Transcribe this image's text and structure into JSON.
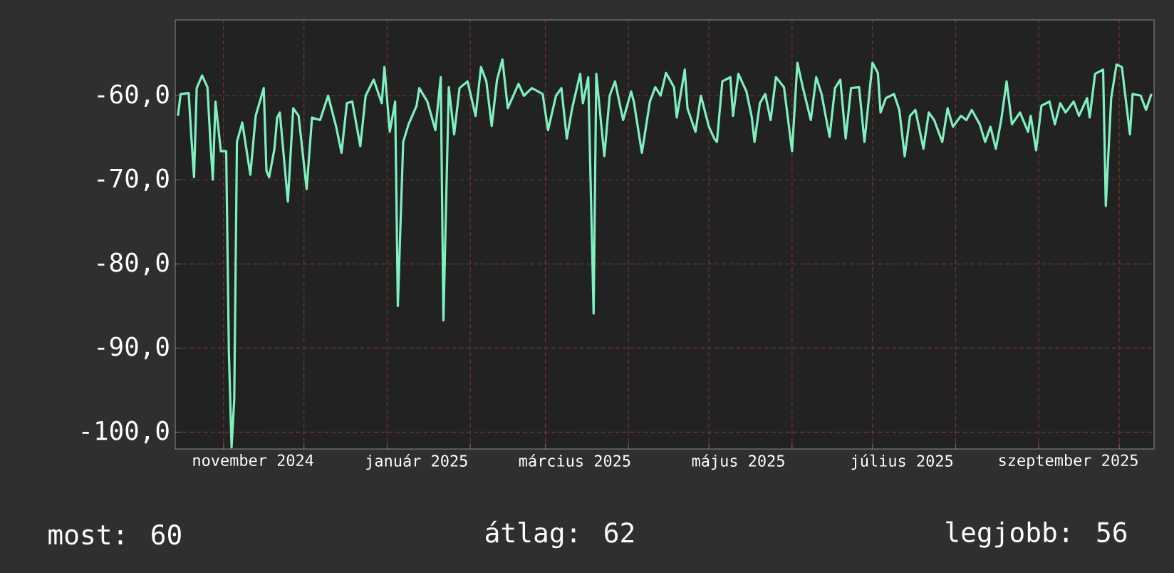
{
  "chart_data": {
    "type": "line",
    "color": "#7ff0c0",
    "grid": true,
    "xlim": [
      "2024-10-14",
      "2025-10-14"
    ],
    "ylim": [
      -102,
      -51
    ],
    "yticks": [
      {
        "value": -100,
        "label": "-100,0"
      },
      {
        "value": -90,
        "label": "-90,0"
      },
      {
        "value": -80,
        "label": "-80,0"
      },
      {
        "value": -70,
        "label": "-70,0"
      },
      {
        "value": -60,
        "label": "-60,0"
      }
    ],
    "xticks": [
      {
        "value": "2024-11-01",
        "label": null
      },
      {
        "value": "2024-12-01",
        "label": null
      },
      {
        "value": "2025-01-01",
        "label": null
      },
      {
        "value": "2025-02-01",
        "label": null
      },
      {
        "value": "2025-03-01",
        "label": null
      },
      {
        "value": "2025-04-01",
        "label": null
      },
      {
        "value": "2025-05-01",
        "label": null
      },
      {
        "value": "2025-06-01",
        "label": null
      },
      {
        "value": "2025-07-01",
        "label": null
      },
      {
        "value": "2025-08-01",
        "label": null
      },
      {
        "value": "2025-09-01",
        "label": null
      },
      {
        "value": "2025-10-01",
        "label": null
      },
      {
        "value": "2024-11-12",
        "label": "november 2024"
      },
      {
        "value": "2025-01-12",
        "label": "január 2025"
      },
      {
        "value": "2025-03-12",
        "label": "március 2025"
      },
      {
        "value": "2025-05-12",
        "label": "május 2025"
      },
      {
        "value": "2025-07-12",
        "label": "július 2025"
      },
      {
        "value": "2025-09-12",
        "label": "szeptember 2025"
      }
    ],
    "annotations": [
      "most: 60",
      "átlag: 62",
      "legjobb: 56"
    ],
    "x": [
      "2024-10-15",
      "2024-10-16",
      "2024-10-19",
      "2024-10-20",
      "2024-10-21",
      "2024-10-22",
      "2024-10-24",
      "2024-10-26",
      "2024-10-27",
      "2024-10-28",
      "2024-10-29",
      "2024-10-31",
      "2024-11-02",
      "2024-11-03",
      "2024-11-04",
      "2024-11-05",
      "2024-11-06",
      "2024-11-08",
      "2024-11-11",
      "2024-11-13",
      "2024-11-16",
      "2024-11-17",
      "2024-11-18",
      "2024-11-20",
      "2024-11-21",
      "2024-11-22",
      "2024-11-25",
      "2024-11-27",
      "2024-11-29",
      "2024-12-02",
      "2024-12-04",
      "2024-12-07",
      "2024-12-10",
      "2024-12-13",
      "2024-12-15",
      "2024-12-17",
      "2024-12-19",
      "2024-12-22",
      "2024-12-24",
      "2024-12-27",
      "2024-12-30",
      "2024-12-31",
      "2025-01-02",
      "2025-01-04",
      "2025-01-05",
      "2025-01-07",
      "2025-01-09",
      "2025-01-12",
      "2025-01-13",
      "2025-01-16",
      "2025-01-19",
      "2025-01-21",
      "2025-01-22",
      "2025-01-24",
      "2025-01-26",
      "2025-01-28",
      "2025-01-31",
      "2025-02-03",
      "2025-02-05",
      "2025-02-07",
      "2025-02-09",
      "2025-02-11",
      "2025-02-13",
      "2025-02-15",
      "2025-02-19",
      "2025-02-21",
      "2025-02-24",
      "2025-02-28",
      "2025-03-02",
      "2025-03-05",
      "2025-03-07",
      "2025-03-09",
      "2025-03-11",
      "2025-03-14",
      "2025-03-15",
      "2025-03-17",
      "2025-03-19",
      "2025-03-20",
      "2025-03-23",
      "2025-03-25",
      "2025-03-27",
      "2025-03-30",
      "2025-04-02",
      "2025-04-03",
      "2025-04-06",
      "2025-04-09",
      "2025-04-11",
      "2025-04-13",
      "2025-04-15",
      "2025-04-18",
      "2025-04-19",
      "2025-04-22",
      "2025-04-23",
      "2025-04-26",
      "2025-04-28",
      "2025-05-01",
      "2025-05-03",
      "2025-05-04",
      "2025-05-06",
      "2025-05-09",
      "2025-05-10",
      "2025-05-12",
      "2025-05-15",
      "2025-05-17",
      "2025-05-18",
      "2025-05-20",
      "2025-05-22",
      "2025-05-24",
      "2025-05-26",
      "2025-05-29",
      "2025-06-01",
      "2025-06-03",
      "2025-06-05",
      "2025-06-08",
      "2025-06-10",
      "2025-06-12",
      "2025-06-15",
      "2025-06-17",
      "2025-06-19",
      "2025-06-21",
      "2025-06-23",
      "2025-06-26",
      "2025-06-28",
      "2025-07-01",
      "2025-07-03",
      "2025-07-04",
      "2025-07-06",
      "2025-07-09",
      "2025-07-11",
      "2025-07-13",
      "2025-07-15",
      "2025-07-17",
      "2025-07-20",
      "2025-07-22",
      "2025-07-24",
      "2025-07-27",
      "2025-07-29",
      "2025-07-31",
      "2025-08-03",
      "2025-08-05",
      "2025-08-07",
      "2025-08-10",
      "2025-08-12",
      "2025-08-14",
      "2025-08-16",
      "2025-08-18",
      "2025-08-20",
      "2025-08-22",
      "2025-08-25",
      "2025-08-28",
      "2025-08-29",
      "2025-08-31",
      "2025-09-02",
      "2025-09-05",
      "2025-09-07",
      "2025-09-09",
      "2025-09-11",
      "2025-09-14",
      "2025-09-16",
      "2025-09-19",
      "2025-09-20",
      "2025-09-22",
      "2025-09-25",
      "2025-09-26",
      "2025-09-28",
      "2025-09-30",
      "2025-10-02",
      "2025-10-05",
      "2025-10-06",
      "2025-10-09",
      "2025-10-11",
      "2025-10-13"
    ],
    "values": [
      -62.4,
      -59.8,
      -59.7,
      -64.9,
      -69.7,
      -59.1,
      -57.6,
      -59.0,
      -64.9,
      -70.0,
      -60.7,
      -66.6,
      -66.6,
      -90.5,
      -101.8,
      -96.1,
      -65.5,
      -63.2,
      -69.4,
      -62.4,
      -59.1,
      -68.9,
      -69.7,
      -66.3,
      -62.6,
      -62.0,
      -72.6,
      -61.5,
      -62.4,
      -71.1,
      -62.6,
      -62.9,
      -60.0,
      -63.7,
      -66.8,
      -60.9,
      -60.7,
      -66.0,
      -60.0,
      -58.1,
      -60.9,
      -56.6,
      -64.3,
      -60.7,
      -85.0,
      -65.5,
      -63.4,
      -61.2,
      -59.1,
      -60.7,
      -64.1,
      -57.8,
      -86.7,
      -59.0,
      -64.6,
      -59.1,
      -58.3,
      -62.4,
      -56.6,
      -58.3,
      -63.6,
      -58.1,
      -55.7,
      -61.5,
      -58.6,
      -60.0,
      -59.1,
      -59.8,
      -64.1,
      -60.0,
      -59.1,
      -65.1,
      -61.5,
      -57.4,
      -60.9,
      -57.8,
      -85.9,
      -57.4,
      -67.2,
      -60.0,
      -58.3,
      -62.9,
      -59.5,
      -60.7,
      -66.8,
      -60.7,
      -59.0,
      -60.0,
      -57.3,
      -59.0,
      -62.6,
      -56.9,
      -61.5,
      -64.3,
      -60.0,
      -63.7,
      -65.1,
      -65.5,
      -58.3,
      -57.8,
      -62.4,
      -57.4,
      -59.5,
      -62.6,
      -65.5,
      -60.9,
      -59.8,
      -62.9,
      -57.8,
      -59.0,
      -66.6,
      -56.1,
      -59.0,
      -62.9,
      -57.8,
      -59.8,
      -64.9,
      -59.1,
      -58.1,
      -65.1,
      -59.1,
      -59.0,
      -65.5,
      -56.1,
      -57.3,
      -62.0,
      -60.3,
      -59.8,
      -61.7,
      -67.2,
      -62.4,
      -61.7,
      -66.3,
      -62.0,
      -62.9,
      -65.5,
      -61.5,
      -63.7,
      -62.4,
      -62.9,
      -61.7,
      -63.4,
      -65.5,
      -63.7,
      -66.3,
      -62.9,
      -58.3,
      -63.4,
      -62.0,
      -64.3,
      -62.4,
      -66.5,
      -61.2,
      -60.7,
      -63.4,
      -60.9,
      -62.0,
      -60.7,
      -62.4,
      -60.3,
      -62.6,
      -57.4,
      -56.9,
      -73.1,
      -60.3,
      -56.3,
      -56.6,
      -64.6,
      -59.8,
      -60.0,
      -61.7,
      -59.8
    ]
  }
}
